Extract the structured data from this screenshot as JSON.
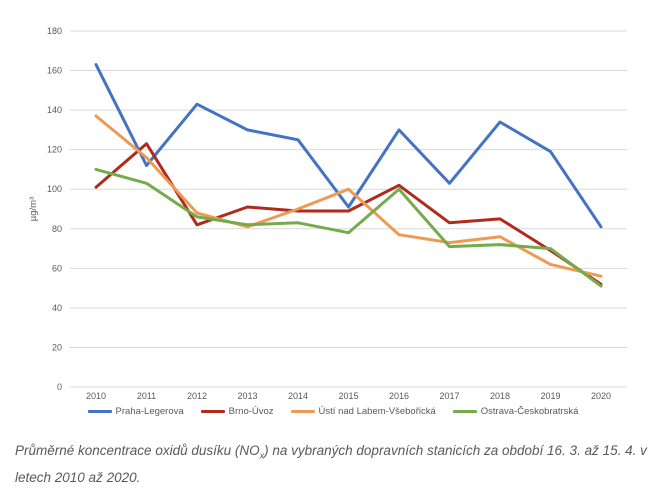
{
  "chart_data": {
    "type": "line",
    "title": "",
    "xlabel": "",
    "ylabel": "µg/m³",
    "ylim": [
      0,
      180
    ],
    "ytick_step": 20,
    "ytick_labels": [
      "0",
      "20",
      "40",
      "60",
      "80",
      "100",
      "120",
      "140",
      "160",
      "180"
    ],
    "grid": true,
    "legend_position": "bottom",
    "categories": [
      "2010",
      "2011",
      "2012",
      "2013",
      "2014",
      "2015",
      "2016",
      "2017",
      "2018",
      "2019",
      "2020"
    ],
    "series": [
      {
        "name": "Praha-Legerova",
        "color": "#4472C4",
        "values": [
          163,
          112,
          143,
          130,
          125,
          91,
          130,
          103,
          134,
          119,
          81
        ]
      },
      {
        "name": "Brno-Úvoz",
        "color": "#AF2B1D",
        "values": [
          101,
          123,
          82,
          91,
          89,
          89,
          102,
          83,
          85,
          69,
          52
        ]
      },
      {
        "name": "Ústí nad Labem-Všebořická",
        "color": "#ED9B54",
        "values": [
          137,
          116,
          88,
          81,
          90,
          100,
          77,
          73,
          76,
          62,
          56
        ]
      },
      {
        "name": "Ostrava-Českobratrská",
        "color": "#74AC4C",
        "values": [
          110,
          103,
          86,
          82,
          83,
          78,
          100,
          71,
          72,
          70,
          51
        ]
      }
    ],
    "colors": {
      "gridline": "#D9D9D9",
      "tick_label": "#595959",
      "axis_title": "#595959"
    }
  },
  "caption": {
    "line1_prefix": "Průměrné koncentrace oxidů dusíku (NO",
    "line1_sub": "x",
    "line1_suffix": ") na vybraných dopravních stanicích za období 16. 3. až 15. 4. v",
    "line2": "letech 2010 až 2020."
  }
}
